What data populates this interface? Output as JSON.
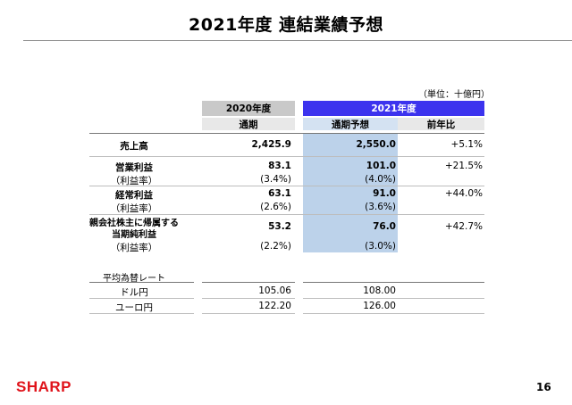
{
  "title": "2021年度 連結業績予想",
  "unit": "（単位：十億円）",
  "headers": {
    "year2020": "2020年度",
    "year2021": "2021年度",
    "full_year": "通期",
    "forecast": "通期予想",
    "yoy": "前年比"
  },
  "rows": [
    {
      "label": "売上高",
      "v2020": "2,425.9",
      "forecast": "2,550.0",
      "yoy": "+5.1%"
    },
    {
      "label": "営業利益",
      "v2020": "83.1",
      "forecast": "101.0",
      "yoy": "+21.5%"
    },
    {
      "label": "（利益率）",
      "v2020": "(3.4%)",
      "forecast": "(4.0%)",
      "yoy": ""
    },
    {
      "label": "経常利益",
      "v2020": "63.1",
      "forecast": "91.0",
      "yoy": "+44.0%"
    },
    {
      "label": "（利益率）",
      "v2020": "(2.6%)",
      "forecast": "(3.6%)",
      "yoy": ""
    },
    {
      "label_line1": "親会社株主に帰属する",
      "label_line2": "当期純利益",
      "v2020": "53.2",
      "forecast": "76.0",
      "yoy": "+42.7%"
    },
    {
      "label": "（利益率）",
      "v2020": "(2.2%)",
      "forecast": "(3.0%)",
      "yoy": ""
    }
  ],
  "fx": {
    "heading": "平均為替レート",
    "rows": [
      {
        "label": "ドル円",
        "v2020": "105.06",
        "forecast": "108.00"
      },
      {
        "label": "ユーロ円",
        "v2020": "122.20",
        "forecast": "126.00"
      }
    ]
  },
  "logo": "SHARP",
  "page_number": "16",
  "colors": {
    "accent_blue": "#3c33ee",
    "band_blue": "#bcd2ea",
    "logo_red": "#e0141b"
  }
}
